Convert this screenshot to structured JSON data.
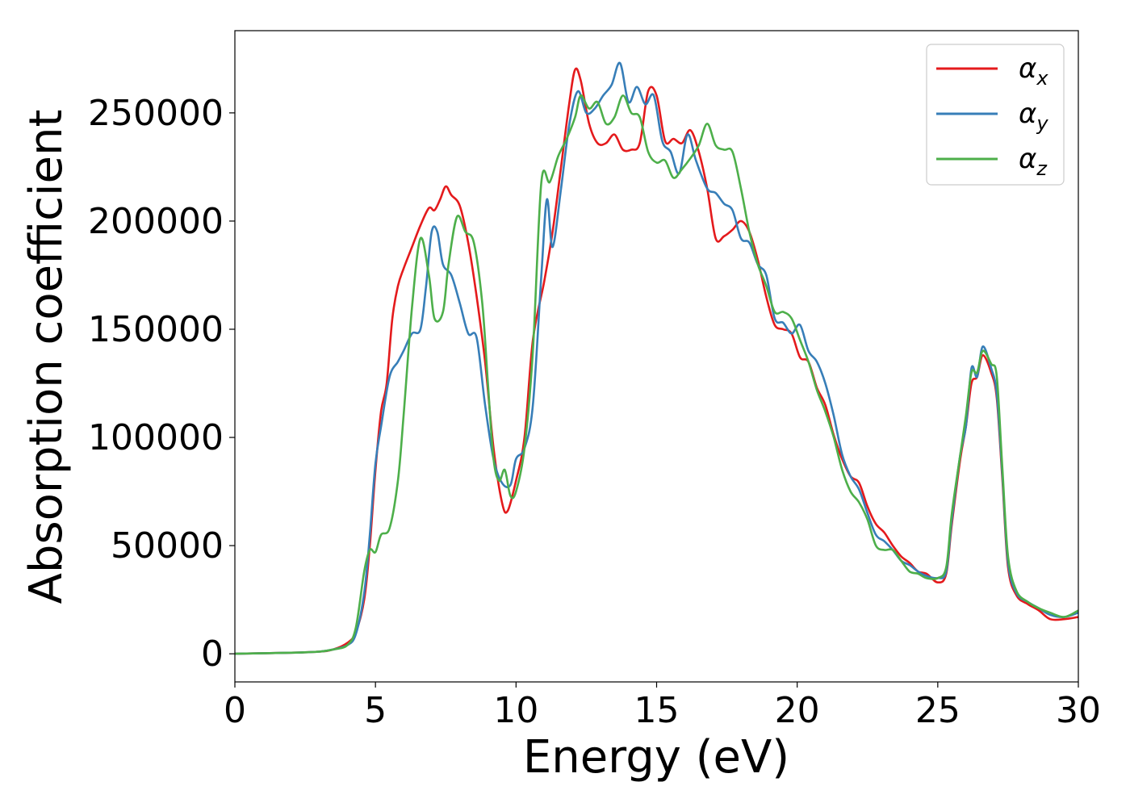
{
  "chart_data": {
    "type": "line",
    "title": "",
    "xlabel": "Energy (eV)",
    "ylabel": "Absorption coefficient",
    "xlim": [
      0,
      30
    ],
    "ylim": [
      -13000,
      288000
    ],
    "xticks": [
      0,
      5,
      10,
      15,
      20,
      25,
      30
    ],
    "yticks": [
      0,
      50000,
      100000,
      150000,
      200000,
      250000
    ],
    "grid": false,
    "legend_position": "top-right",
    "series": [
      {
        "name": "αx",
        "symbol": "α",
        "subscript": "x",
        "color": "#e41a1c",
        "points": [
          [
            0,
            0
          ],
          [
            2,
            500
          ],
          [
            3,
            1000
          ],
          [
            3.5,
            2000
          ],
          [
            4,
            5000
          ],
          [
            4.3,
            10000
          ],
          [
            4.6,
            25000
          ],
          [
            4.8,
            50000
          ],
          [
            5,
            85000
          ],
          [
            5.2,
            112000
          ],
          [
            5.4,
            125000
          ],
          [
            5.6,
            155000
          ],
          [
            5.8,
            170000
          ],
          [
            6,
            178000
          ],
          [
            6.3,
            188000
          ],
          [
            6.6,
            198000
          ],
          [
            6.9,
            206000
          ],
          [
            7.1,
            205000
          ],
          [
            7.3,
            210000
          ],
          [
            7.5,
            216000
          ],
          [
            7.7,
            212000
          ],
          [
            8,
            207000
          ],
          [
            8.3,
            190000
          ],
          [
            8.6,
            165000
          ],
          [
            8.9,
            135000
          ],
          [
            9.2,
            95000
          ],
          [
            9.5,
            70000
          ],
          [
            9.7,
            66000
          ],
          [
            10,
            80000
          ],
          [
            10.3,
            100000
          ],
          [
            10.6,
            145000
          ],
          [
            11,
            172000
          ],
          [
            11.3,
            195000
          ],
          [
            11.6,
            225000
          ],
          [
            11.9,
            255000
          ],
          [
            12.1,
            270000
          ],
          [
            12.3,
            265000
          ],
          [
            12.6,
            245000
          ],
          [
            12.9,
            236000
          ],
          [
            13.2,
            236000
          ],
          [
            13.5,
            240000
          ],
          [
            13.8,
            233000
          ],
          [
            14.1,
            233000
          ],
          [
            14.4,
            236000
          ],
          [
            14.7,
            260000
          ],
          [
            15,
            258000
          ],
          [
            15.3,
            237000
          ],
          [
            15.6,
            238000
          ],
          [
            15.9,
            236000
          ],
          [
            16.2,
            242000
          ],
          [
            16.5,
            232000
          ],
          [
            16.8,
            215000
          ],
          [
            17.1,
            192000
          ],
          [
            17.4,
            193000
          ],
          [
            17.7,
            196000
          ],
          [
            18,
            200000
          ],
          [
            18.3,
            195000
          ],
          [
            18.6,
            182000
          ],
          [
            18.9,
            165000
          ],
          [
            19.2,
            152000
          ],
          [
            19.5,
            150000
          ],
          [
            19.8,
            148000
          ],
          [
            20.1,
            137000
          ],
          [
            20.4,
            135000
          ],
          [
            20.7,
            123000
          ],
          [
            21,
            115000
          ],
          [
            21.3,
            101000
          ],
          [
            21.6,
            90000
          ],
          [
            21.9,
            82000
          ],
          [
            22.2,
            79000
          ],
          [
            22.5,
            68000
          ],
          [
            22.8,
            60000
          ],
          [
            23.1,
            56000
          ],
          [
            23.4,
            50000
          ],
          [
            23.7,
            45000
          ],
          [
            24,
            42000
          ],
          [
            24.3,
            38000
          ],
          [
            24.6,
            37000
          ],
          [
            25,
            33000
          ],
          [
            25.3,
            37000
          ],
          [
            25.5,
            60000
          ],
          [
            25.8,
            90000
          ],
          [
            26,
            105000
          ],
          [
            26.2,
            125000
          ],
          [
            26.4,
            128000
          ],
          [
            26.6,
            138000
          ],
          [
            26.9,
            130000
          ],
          [
            27.1,
            118000
          ],
          [
            27.3,
            80000
          ],
          [
            27.5,
            40000
          ],
          [
            27.8,
            27000
          ],
          [
            28.2,
            23000
          ],
          [
            28.6,
            20000
          ],
          [
            29,
            16000
          ],
          [
            29.5,
            16000
          ],
          [
            30,
            17000
          ]
        ]
      },
      {
        "name": "αy",
        "symbol": "α",
        "subscript": "y",
        "color": "#377eb8",
        "points": [
          [
            0,
            0
          ],
          [
            2,
            500
          ],
          [
            3,
            1000
          ],
          [
            3.5,
            2000
          ],
          [
            4,
            4000
          ],
          [
            4.3,
            9000
          ],
          [
            4.6,
            28000
          ],
          [
            4.8,
            55000
          ],
          [
            5,
            88000
          ],
          [
            5.2,
            105000
          ],
          [
            5.5,
            128000
          ],
          [
            5.8,
            135000
          ],
          [
            6,
            140000
          ],
          [
            6.3,
            148000
          ],
          [
            6.6,
            150000
          ],
          [
            6.8,
            170000
          ],
          [
            7,
            195000
          ],
          [
            7.2,
            195000
          ],
          [
            7.4,
            180000
          ],
          [
            7.7,
            175000
          ],
          [
            8,
            162000
          ],
          [
            8.3,
            148000
          ],
          [
            8.6,
            146000
          ],
          [
            8.9,
            115000
          ],
          [
            9.2,
            90000
          ],
          [
            9.5,
            79000
          ],
          [
            9.8,
            78000
          ],
          [
            10,
            90000
          ],
          [
            10.3,
            95000
          ],
          [
            10.6,
            115000
          ],
          [
            10.9,
            175000
          ],
          [
            11.1,
            210000
          ],
          [
            11.3,
            188000
          ],
          [
            11.6,
            215000
          ],
          [
            11.9,
            245000
          ],
          [
            12.2,
            260000
          ],
          [
            12.5,
            250000
          ],
          [
            12.8,
            252000
          ],
          [
            13.1,
            258000
          ],
          [
            13.4,
            263000
          ],
          [
            13.7,
            273000
          ],
          [
            14,
            255000
          ],
          [
            14.3,
            262000
          ],
          [
            14.6,
            254000
          ],
          [
            14.9,
            258000
          ],
          [
            15.2,
            237000
          ],
          [
            15.5,
            232000
          ],
          [
            15.8,
            222000
          ],
          [
            16.1,
            240000
          ],
          [
            16.4,
            228000
          ],
          [
            16.8,
            215000
          ],
          [
            17.1,
            213000
          ],
          [
            17.4,
            208000
          ],
          [
            17.7,
            205000
          ],
          [
            18,
            192000
          ],
          [
            18.3,
            190000
          ],
          [
            18.6,
            180000
          ],
          [
            18.9,
            175000
          ],
          [
            19.2,
            155000
          ],
          [
            19.5,
            153000
          ],
          [
            19.8,
            148000
          ],
          [
            20.1,
            152000
          ],
          [
            20.4,
            140000
          ],
          [
            20.7,
            135000
          ],
          [
            21,
            125000
          ],
          [
            21.3,
            110000
          ],
          [
            21.6,
            92000
          ],
          [
            21.9,
            82000
          ],
          [
            22.2,
            76000
          ],
          [
            22.5,
            65000
          ],
          [
            22.8,
            55000
          ],
          [
            23.1,
            52000
          ],
          [
            23.4,
            48000
          ],
          [
            23.7,
            43000
          ],
          [
            24,
            41000
          ],
          [
            24.3,
            38000
          ],
          [
            24.6,
            36000
          ],
          [
            25,
            35000
          ],
          [
            25.3,
            38000
          ],
          [
            25.5,
            62000
          ],
          [
            25.8,
            92000
          ],
          [
            26,
            105000
          ],
          [
            26.2,
            132000
          ],
          [
            26.4,
            128000
          ],
          [
            26.6,
            142000
          ],
          [
            26.9,
            132000
          ],
          [
            27.1,
            120000
          ],
          [
            27.3,
            82000
          ],
          [
            27.5,
            42000
          ],
          [
            27.8,
            28000
          ],
          [
            28.2,
            24000
          ],
          [
            28.6,
            21000
          ],
          [
            29,
            18000
          ],
          [
            29.5,
            17000
          ],
          [
            30,
            19000
          ]
        ]
      },
      {
        "name": "αz",
        "symbol": "α",
        "subscript": "z",
        "color": "#4daf4a",
        "points": [
          [
            0,
            0
          ],
          [
            2,
            500
          ],
          [
            3,
            1000
          ],
          [
            3.5,
            2000
          ],
          [
            4,
            4000
          ],
          [
            4.3,
            12000
          ],
          [
            4.6,
            38000
          ],
          [
            4.8,
            48000
          ],
          [
            5,
            47000
          ],
          [
            5.2,
            55000
          ],
          [
            5.5,
            58000
          ],
          [
            5.8,
            80000
          ],
          [
            6,
            110000
          ],
          [
            6.3,
            160000
          ],
          [
            6.6,
            192000
          ],
          [
            6.9,
            175000
          ],
          [
            7.1,
            155000
          ],
          [
            7.4,
            158000
          ],
          [
            7.6,
            180000
          ],
          [
            7.9,
            202000
          ],
          [
            8.2,
            195000
          ],
          [
            8.5,
            190000
          ],
          [
            8.8,
            162000
          ],
          [
            9,
            125000
          ],
          [
            9.2,
            90000
          ],
          [
            9.4,
            80000
          ],
          [
            9.6,
            85000
          ],
          [
            9.8,
            73000
          ],
          [
            10,
            75000
          ],
          [
            10.3,
            95000
          ],
          [
            10.6,
            140000
          ],
          [
            10.9,
            218000
          ],
          [
            11.2,
            218000
          ],
          [
            11.5,
            230000
          ],
          [
            11.8,
            238000
          ],
          [
            12.1,
            248000
          ],
          [
            12.3,
            258000
          ],
          [
            12.6,
            252000
          ],
          [
            12.9,
            255000
          ],
          [
            13.2,
            245000
          ],
          [
            13.5,
            248000
          ],
          [
            13.8,
            258000
          ],
          [
            14.1,
            250000
          ],
          [
            14.4,
            248000
          ],
          [
            14.7,
            232000
          ],
          [
            15,
            227000
          ],
          [
            15.3,
            228000
          ],
          [
            15.6,
            220000
          ],
          [
            15.9,
            224000
          ],
          [
            16.2,
            229000
          ],
          [
            16.5,
            235000
          ],
          [
            16.8,
            245000
          ],
          [
            17.1,
            235000
          ],
          [
            17.4,
            233000
          ],
          [
            17.7,
            232000
          ],
          [
            18,
            215000
          ],
          [
            18.3,
            195000
          ],
          [
            18.6,
            180000
          ],
          [
            18.9,
            170000
          ],
          [
            19.2,
            158000
          ],
          [
            19.5,
            158000
          ],
          [
            19.8,
            155000
          ],
          [
            20.1,
            145000
          ],
          [
            20.4,
            135000
          ],
          [
            20.7,
            122000
          ],
          [
            21,
            112000
          ],
          [
            21.3,
            100000
          ],
          [
            21.6,
            85000
          ],
          [
            21.9,
            75000
          ],
          [
            22.2,
            70000
          ],
          [
            22.5,
            62000
          ],
          [
            22.8,
            50000
          ],
          [
            23.1,
            48000
          ],
          [
            23.4,
            48000
          ],
          [
            23.7,
            43000
          ],
          [
            24,
            38000
          ],
          [
            24.3,
            37000
          ],
          [
            24.6,
            35000
          ],
          [
            25,
            35000
          ],
          [
            25.3,
            40000
          ],
          [
            25.5,
            65000
          ],
          [
            25.8,
            92000
          ],
          [
            26,
            110000
          ],
          [
            26.2,
            130000
          ],
          [
            26.4,
            130000
          ],
          [
            26.6,
            140000
          ],
          [
            26.9,
            134000
          ],
          [
            27.1,
            128000
          ],
          [
            27.3,
            85000
          ],
          [
            27.5,
            45000
          ],
          [
            27.8,
            29000
          ],
          [
            28.2,
            24000
          ],
          [
            28.6,
            21000
          ],
          [
            29,
            19000
          ],
          [
            29.5,
            17000
          ],
          [
            30,
            20000
          ]
        ]
      }
    ]
  }
}
